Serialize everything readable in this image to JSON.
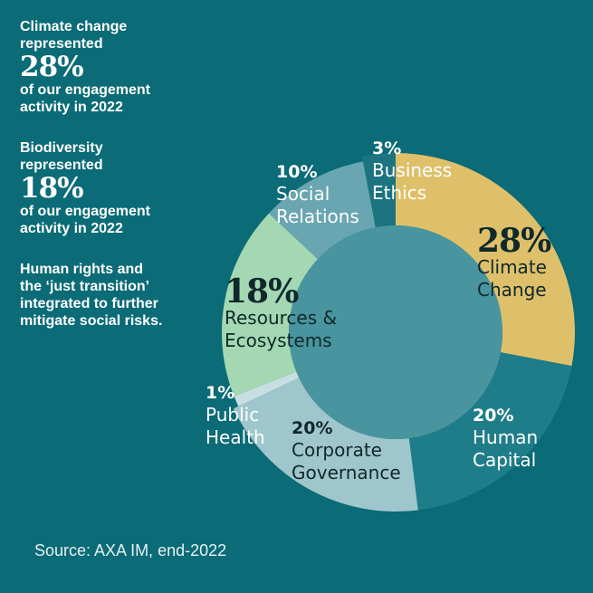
{
  "highlights": {
    "climate": {
      "line1": "Climate change",
      "line2": "represented",
      "pct": "28%",
      "line3": "of our engagement",
      "line4": "activity in 2022"
    },
    "biodiversity": {
      "line1": "Biodiversity",
      "line2": "represented",
      "pct": "18%",
      "line3": "of our engagement",
      "line4": "activity in 2022"
    },
    "human_rights": {
      "line1": "Human rights and",
      "line2": "the ‘just transition’",
      "line3": "integrated to further",
      "line4": "mitigate social risks."
    }
  },
  "source": "Source: AXA IM, end-2022",
  "colors": {
    "background": "#0b6b76",
    "inner_circle": "#49959f"
  },
  "chart_data": {
    "type": "pie",
    "variant": "donut",
    "slices": [
      {
        "pct_label": "28%",
        "name_lines": [
          "Climate",
          "Change"
        ],
        "value": 28,
        "color": "#dfc06a"
      },
      {
        "pct_label": "20%",
        "name_lines": [
          "Human",
          "Capital"
        ],
        "value": 20,
        "color": "#1f7d89"
      },
      {
        "pct_label": "20%",
        "name_lines": [
          "Corporate",
          "Governance"
        ],
        "value": 20,
        "color": "#9fc6cc"
      },
      {
        "pct_label": "1%",
        "name_lines": [
          "Public",
          "Health"
        ],
        "value": 1,
        "color": "#c8dfe2"
      },
      {
        "pct_label": "18%",
        "name_lines": [
          "Resources &",
          "Ecosystems"
        ],
        "value": 18,
        "color": "#a3d8b3"
      },
      {
        "pct_label": "10%",
        "name_lines": [
          "Social",
          "Relations"
        ],
        "value": 10,
        "color": "#69a6b1"
      },
      {
        "pct_label": "3%",
        "name_lines": [
          "Business",
          "Ethics"
        ],
        "value": 3,
        "color": "#1b7480"
      }
    ]
  }
}
